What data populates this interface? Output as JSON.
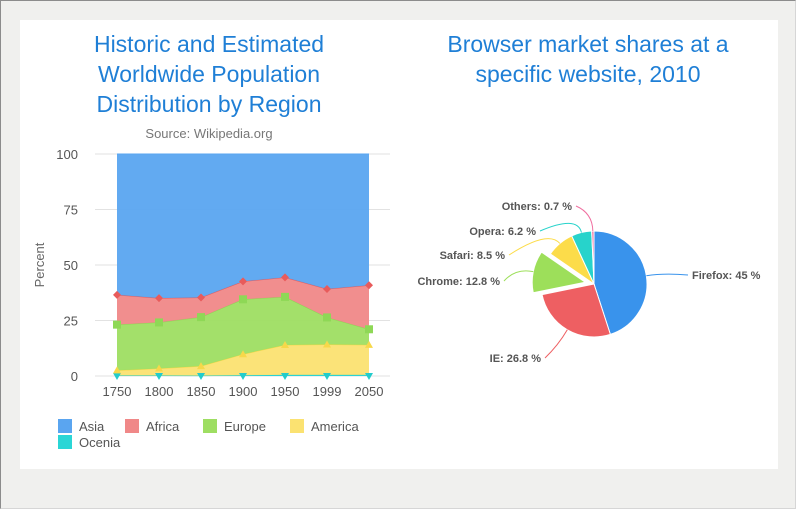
{
  "colors": {
    "asia": "#5aa5f0",
    "africa": "#f08888",
    "europe": "#9ede62",
    "america": "#fbe271",
    "oceania": "#2ad6d6",
    "firefox": "#3993ec",
    "ie": "#ee5f62",
    "chrome": "#9ddf5a",
    "safari": "#fcdc4a",
    "opera": "#27d3cb",
    "others": "#f06fa0"
  },
  "chart_data": [
    {
      "type": "area",
      "stacking": "percent",
      "title": "Historic and Estimated Worldwide Population Distribution by Region",
      "title_lines": [
        "Historic and Estimated",
        "Worldwide Population",
        "Distribution by Region"
      ],
      "subtitle": "Source: Wikipedia.org",
      "ylabel": "Percent",
      "ylim": [
        0,
        100
      ],
      "yticks": [
        0,
        25,
        50,
        75,
        100
      ],
      "categories": [
        "1750",
        "1800",
        "1850",
        "1900",
        "1950",
        "1999",
        "2050"
      ],
      "series": [
        {
          "name": "Ocenia",
          "values": [
            2,
            2,
            2,
            6,
            13,
            30,
            46
          ]
        },
        {
          "name": "America",
          "values": [
            18,
            31,
            54,
            156,
            339,
            818,
            1201
          ]
        },
        {
          "name": "Europe",
          "values": [
            163,
            203,
            276,
            408,
            547,
            729,
            628
          ]
        },
        {
          "name": "Africa",
          "values": [
            106,
            107,
            111,
            133,
            221,
            767,
            1766
          ]
        },
        {
          "name": "Asia",
          "values": [
            502,
            635,
            809,
            947,
            1402,
            3634,
            5268
          ]
        }
      ],
      "legend": [
        "Asia",
        "Africa",
        "Europe",
        "America",
        "Ocenia"
      ],
      "legend_placement": "bottom-left"
    },
    {
      "type": "pie",
      "title": "Browser market shares at a specific website, 2010",
      "title_lines": [
        "Browser market shares at a",
        "specific website, 2010"
      ],
      "slices": [
        {
          "name": "Firefox",
          "value": 45.0,
          "label": "Firefox: 45 %"
        },
        {
          "name": "IE",
          "value": 26.8,
          "label": "IE: 26.8 %"
        },
        {
          "name": "Chrome",
          "value": 12.8,
          "label": "Chrome: 12.8 %",
          "exploded": true
        },
        {
          "name": "Safari",
          "value": 8.5,
          "label": "Safari: 8.5 %"
        },
        {
          "name": "Opera",
          "value": 6.2,
          "label": "Opera: 6.2 %"
        },
        {
          "name": "Others",
          "value": 0.7,
          "label": "Others: 0.7 %"
        }
      ]
    }
  ]
}
